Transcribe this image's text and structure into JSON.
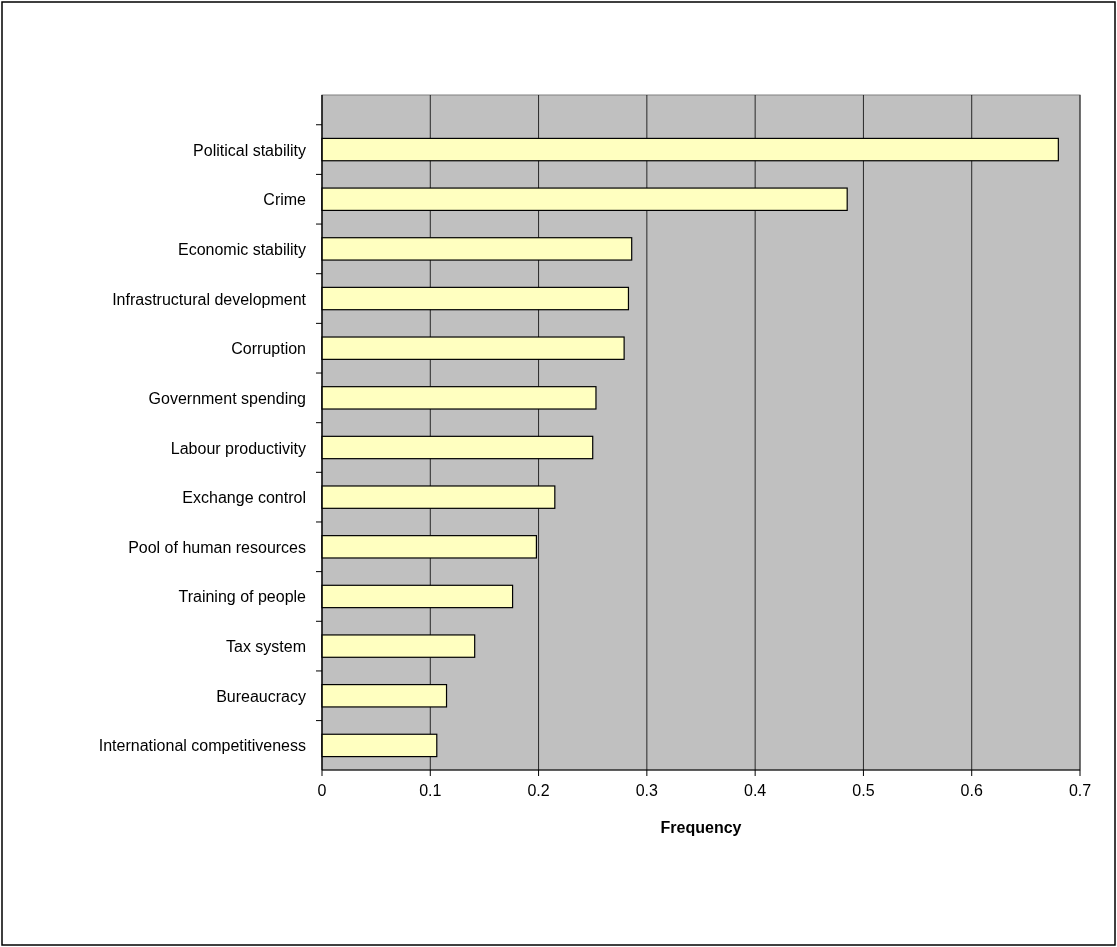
{
  "chart_data": {
    "type": "bar",
    "orientation": "horizontal",
    "xlabel": "Frequency",
    "categories": [
      "Political stability",
      "Crime",
      "Economic stability",
      "Infrastructural development",
      "Corruption",
      "Government spending",
      "Labour productivity",
      "Exchange control",
      "Pool of human resources",
      "Training of people",
      "Tax system",
      "Bureaucracy",
      "International competitiveness"
    ],
    "values": [
      0.68,
      0.485,
      0.286,
      0.283,
      0.279,
      0.253,
      0.25,
      0.215,
      0.198,
      0.176,
      0.141,
      0.115,
      0.106
    ],
    "color": "#ffffc0",
    "xlim": [
      0,
      0.7
    ],
    "xticks": [
      0,
      0.1,
      0.2,
      0.3,
      0.4,
      0.5,
      0.6,
      0.7
    ],
    "grid": "x"
  }
}
